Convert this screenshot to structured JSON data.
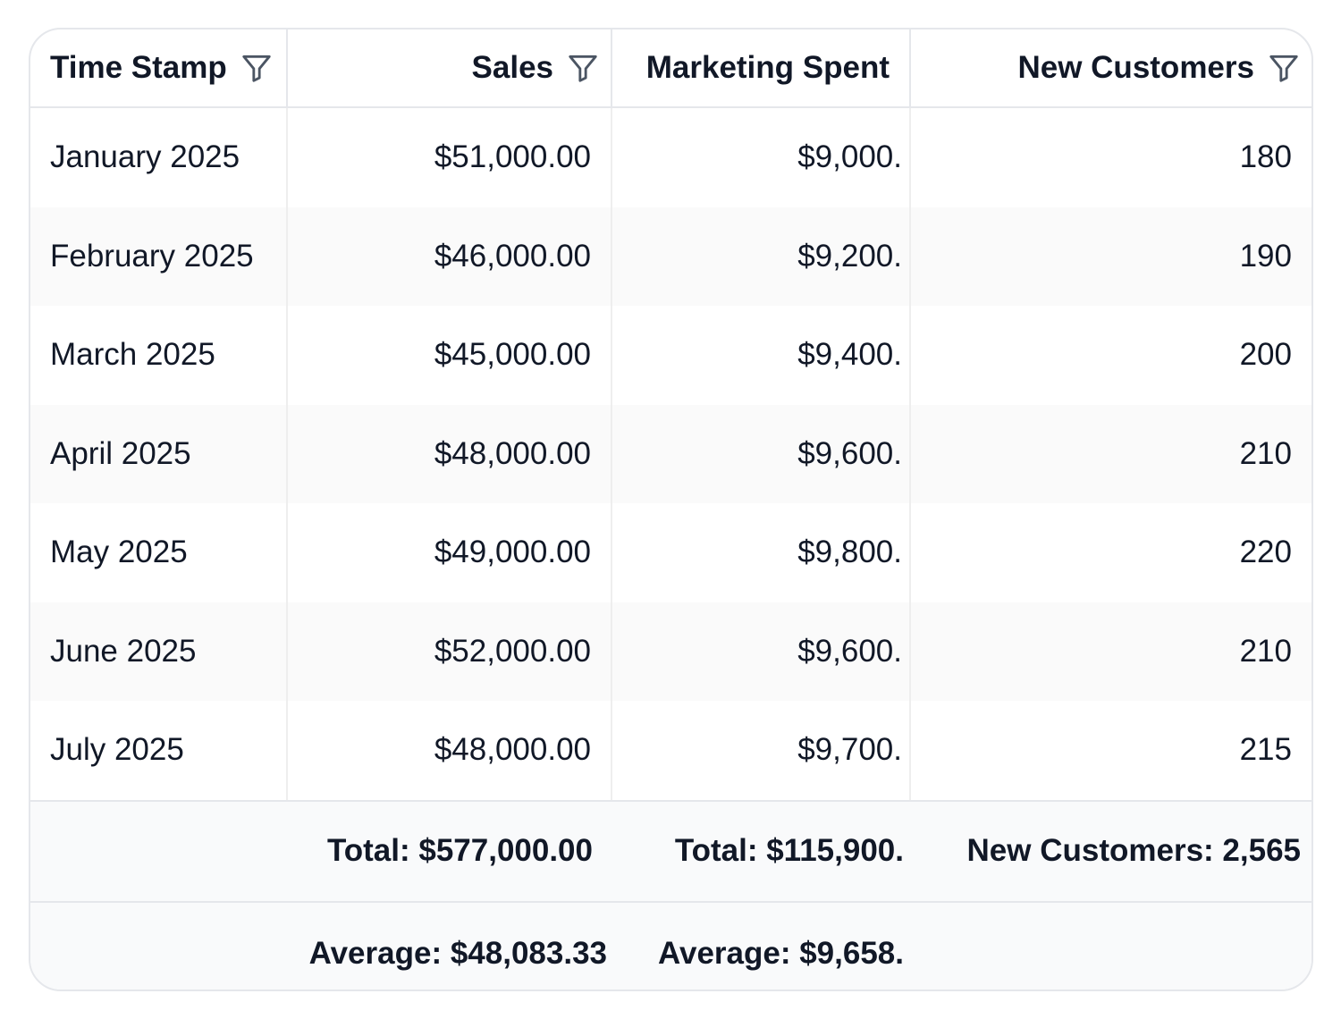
{
  "table": {
    "columns": [
      {
        "label": "Time Stamp",
        "filter_icon": "filter-icon"
      },
      {
        "label": "Sales",
        "filter_icon": "filter-icon"
      },
      {
        "label": "Marketing Spent",
        "filter_icon": null
      },
      {
        "label": "New Customers",
        "filter_icon": "filter-icon"
      }
    ],
    "rows": [
      {
        "time": "January 2025",
        "sales": "$51,000.00",
        "marketing": "$9,000.",
        "customers": "180"
      },
      {
        "time": "February 2025",
        "sales": "$46,000.00",
        "marketing": "$9,200.",
        "customers": "190"
      },
      {
        "time": "March 2025",
        "sales": "$45,000.00",
        "marketing": "$9,400.",
        "customers": "200"
      },
      {
        "time": "April 2025",
        "sales": "$48,000.00",
        "marketing": "$9,600.",
        "customers": "210"
      },
      {
        "time": "May 2025",
        "sales": "$49,000.00",
        "marketing": "$9,800.",
        "customers": "220"
      },
      {
        "time": "June 2025",
        "sales": "$52,000.00",
        "marketing": "$9,600.",
        "customers": "210"
      },
      {
        "time": "July 2025",
        "sales": "$48,000.00",
        "marketing": "$9,700.",
        "customers": "215"
      }
    ],
    "totals": {
      "sales": "Total: $577,000.00",
      "marketing": "Total: $115,900.",
      "customers": "New Customers: 2,565"
    },
    "averages": {
      "sales": "Average: $48,083.33",
      "marketing": "Average: $9,658."
    }
  },
  "colors": {
    "border": "#e5e7eb",
    "row_alt": "#fafafa",
    "footer_bg": "#f9fafb",
    "text": "#111827"
  }
}
